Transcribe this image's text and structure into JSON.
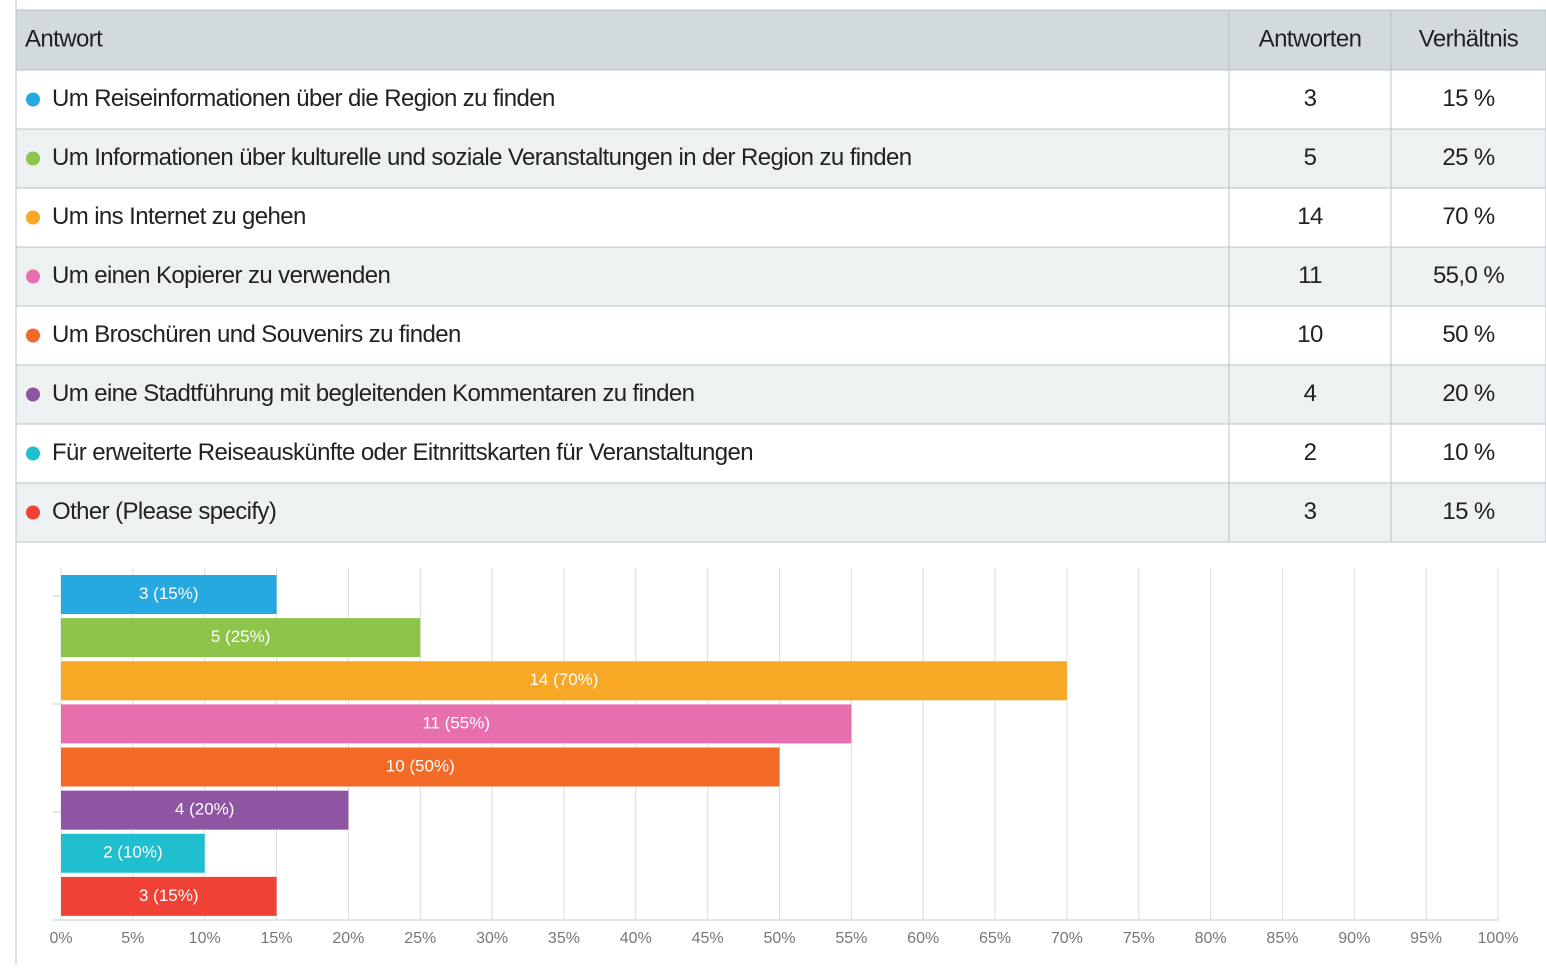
{
  "table": {
    "columns": [
      "Antwort",
      "Antworten",
      "Verhältnis"
    ],
    "rows": [
      [
        "Um Reiseinformationen über die Region zu finden",
        3,
        "15 %"
      ],
      [
        "Um Informationen über kulturelle und soziale Veranstaltungen in der Region zu finden",
        5,
        "25 %"
      ],
      [
        "Um ins Internet zu gehen",
        14,
        "70 %"
      ],
      [
        "Um einen Kopierer zu verwenden",
        11,
        "55,0 %"
      ],
      [
        "Um Broschüren und Souvenirs zu finden",
        10,
        "50 %"
      ],
      [
        "Um eine Stadtführung mit begleitenden Kommentaren zu finden",
        4,
        "20 %"
      ],
      [
        "Für erweiterte Reiseauskünfte oder Eitnrittskarten für Veranstaltungen",
        2,
        "10 %"
      ],
      [
        "Other (Please specify)",
        3,
        "15 %"
      ]
    ]
  },
  "chart_data": {
    "type": "hbar",
    "values": [
      15,
      25,
      70,
      55,
      50,
      20,
      10,
      15
    ],
    "value_labels": [
      "3 (15%)",
      "5 (25%)",
      "14 (70%)",
      "11 (55%)",
      "10 (50%)",
      "4 (20%)",
      "2 (10%)",
      "3 (15%)"
    ],
    "colors": [
      "#25a9e0",
      "#8dc54b",
      "#f9a825",
      "#e76fae",
      "#f26a26",
      "#8e55a2",
      "#1fbfcf",
      "#ef4136"
    ],
    "xlim": [
      0,
      100
    ],
    "xticks": [
      {
        "value": 0,
        "label": "0%"
      },
      {
        "value": 5,
        "label": "5%"
      },
      {
        "value": 10,
        "label": "10%"
      },
      {
        "value": 15,
        "label": "15%"
      },
      {
        "value": 20,
        "label": "20%"
      },
      {
        "value": 25,
        "label": "25%"
      },
      {
        "value": 30,
        "label": "30%"
      },
      {
        "value": 35,
        "label": "35%"
      },
      {
        "value": 40,
        "label": "40%"
      },
      {
        "value": 45,
        "label": "45%"
      },
      {
        "value": 50,
        "label": "50%"
      },
      {
        "value": 55,
        "label": "55%"
      },
      {
        "value": 60,
        "label": "60%"
      },
      {
        "value": 65,
        "label": "65%"
      },
      {
        "value": 70,
        "label": "70%"
      },
      {
        "value": 75,
        "label": "75%"
      },
      {
        "value": 80,
        "label": "80%"
      },
      {
        "value": 85,
        "label": "85%"
      },
      {
        "value": 90,
        "label": "90%"
      },
      {
        "value": 95,
        "label": "95%"
      },
      {
        "value": 100,
        "label": "100%"
      }
    ],
    "grid": true
  }
}
